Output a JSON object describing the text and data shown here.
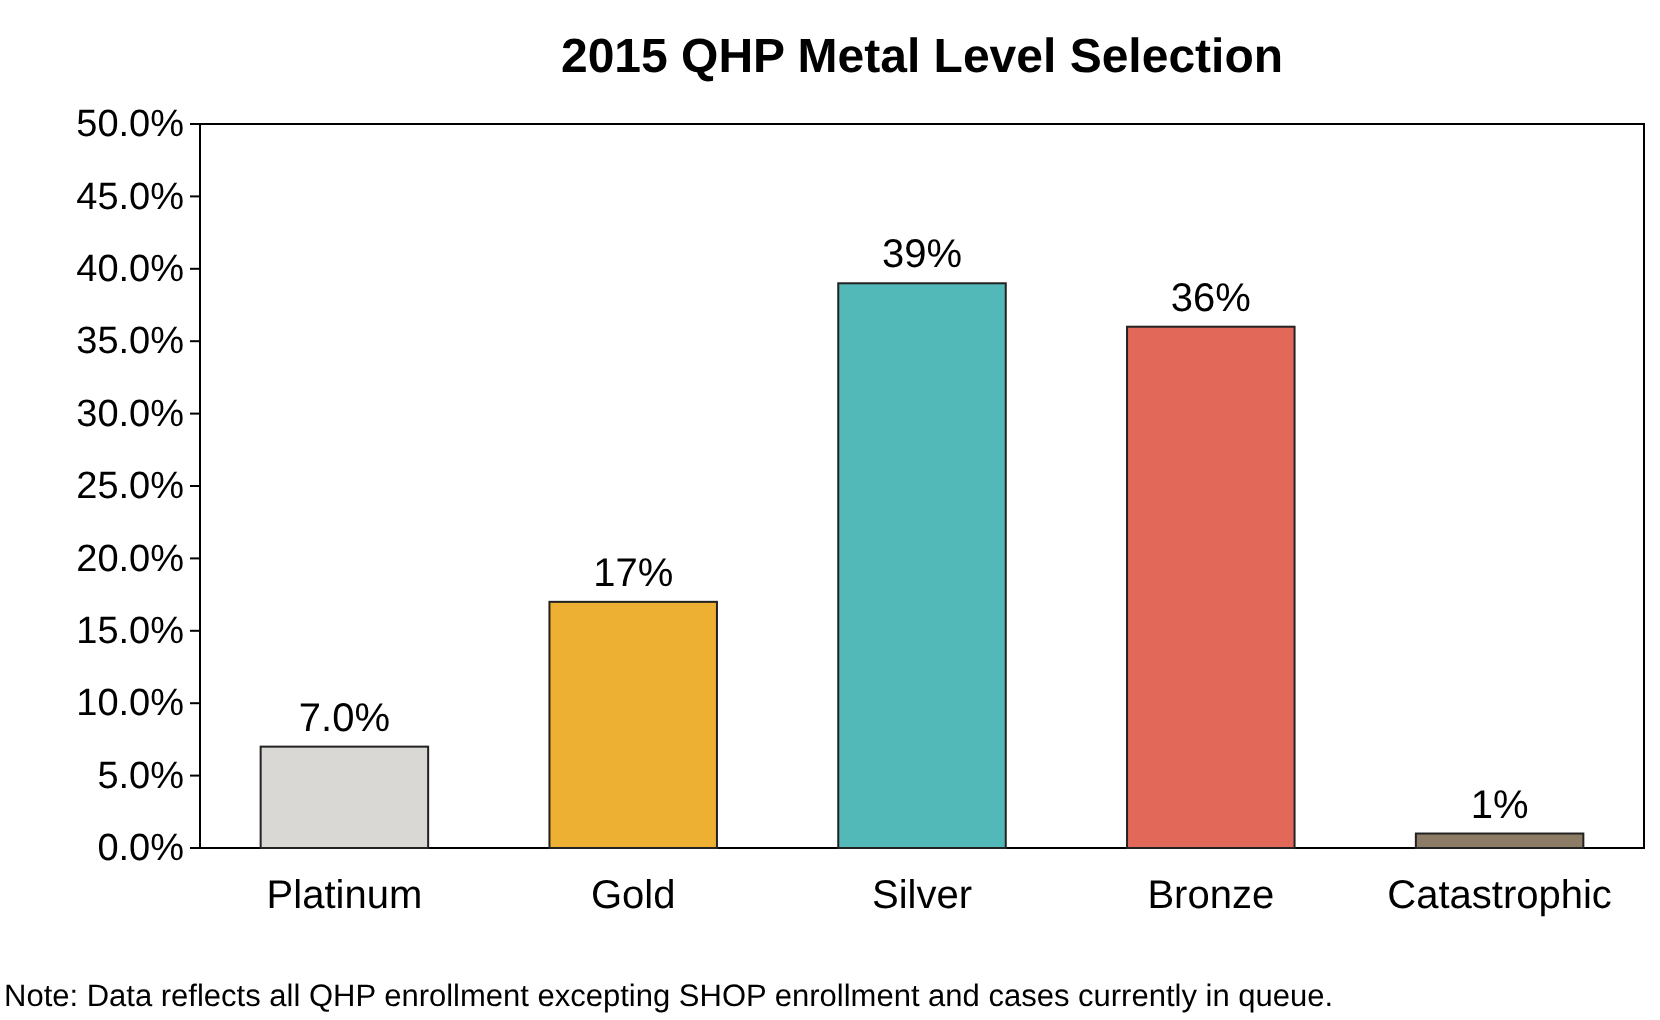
{
  "chart_data": {
    "type": "bar",
    "title": "2015 QHP Metal Level Selection",
    "categories": [
      "Platinum",
      "Gold",
      "Silver",
      "Bronze",
      "Catastrophic"
    ],
    "values": [
      7,
      17,
      39,
      36,
      1
    ],
    "colors": [
      "#d9d8d4",
      "#edb032",
      "#52b8b8",
      "#e2685a",
      "#8c7b65"
    ],
    "value_labels": [
      "7.0%",
      "17%",
      "39%",
      "36%",
      "1%"
    ],
    "ylim": [
      0,
      50
    ],
    "yticks": [
      {
        "value": 0,
        "label": "0.0%"
      },
      {
        "value": 5,
        "label": "5.0%"
      },
      {
        "value": 10,
        "label": "10.0%"
      },
      {
        "value": 15,
        "label": "15.0%"
      },
      {
        "value": 20,
        "label": "20.0%"
      },
      {
        "value": 25,
        "label": "25.0%"
      },
      {
        "value": 30,
        "label": "30.0%"
      },
      {
        "value": 35,
        "label": "35.0%"
      },
      {
        "value": 40,
        "label": "40.0%"
      },
      {
        "value": 45,
        "label": "45.0%"
      },
      {
        "value": 50,
        "label": "50.0%"
      }
    ],
    "grid": false,
    "annotations": [
      "Note: Data reflects all QHP enrollment excepting SHOP enrollment and cases currently in queue."
    ]
  }
}
